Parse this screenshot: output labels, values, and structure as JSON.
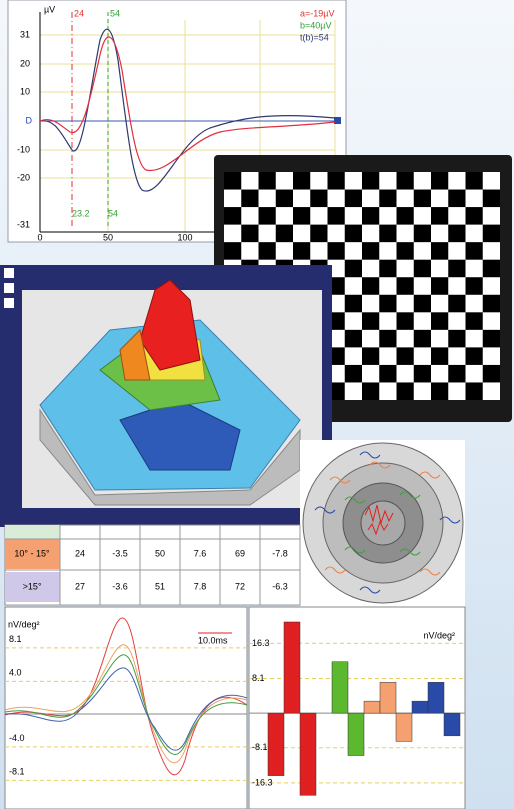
{
  "erg_plot": {
    "unit": "µV",
    "y_labels": [
      "31",
      "20",
      "10",
      "D",
      "-10",
      "-20",
      "-31"
    ],
    "x_labels": [
      "0",
      "50",
      "100"
    ],
    "markers": [
      "24",
      "54"
    ],
    "bottom_markers": [
      "23.2",
      "54"
    ],
    "legend": [
      "a=-19µV",
      "b=40µV",
      "t(b)=54"
    ]
  },
  "table": {
    "rows": [
      [
        "10° - 15°",
        "24",
        "-3.5",
        "50",
        "7.6",
        "69",
        "-7.8"
      ],
      [
        ">15°",
        "27",
        "-3.6",
        "51",
        "7.8",
        "72",
        "-6.3"
      ]
    ]
  },
  "waveforms": {
    "unit": "nV/deg²",
    "scale_label": "10.0ms",
    "ylim": [
      -11.6,
      11.5
    ],
    "yticks": [
      8.1,
      {
        "value": 4,
        "label": "4.0"
      },
      {
        "value": -4,
        "label": "-4.0"
      },
      -8.1
    ]
  },
  "bar_chart": {
    "unit": "nV/deg²",
    "ylim": [
      -22.4,
      24.8
    ],
    "yticks": [
      16.3,
      8.1,
      -8.1,
      -16.3
    ],
    "bars": [
      {
        "color": "#e02020",
        "value": -14.6
      },
      {
        "color": "#e02020",
        "value": 21.3
      },
      {
        "color": "#e02020",
        "value": -19.2
      },
      {
        "color": "#e02020",
        "value": 0
      },
      {
        "color": "#5cb82e",
        "value": 12
      },
      {
        "color": "#5cb82e",
        "value": -9.9
      },
      {
        "color": "#f4a070",
        "value": 2.8
      },
      {
        "color": "#f4a070",
        "value": 7.2
      },
      {
        "color": "#f4a070",
        "value": -6.6
      },
      {
        "color": "#2a4aa8",
        "value": 2.8
      },
      {
        "color": "#2a4aa8",
        "value": 7.2
      },
      {
        "color": "#2a4aa8",
        "value": -5.3
      }
    ]
  }
}
